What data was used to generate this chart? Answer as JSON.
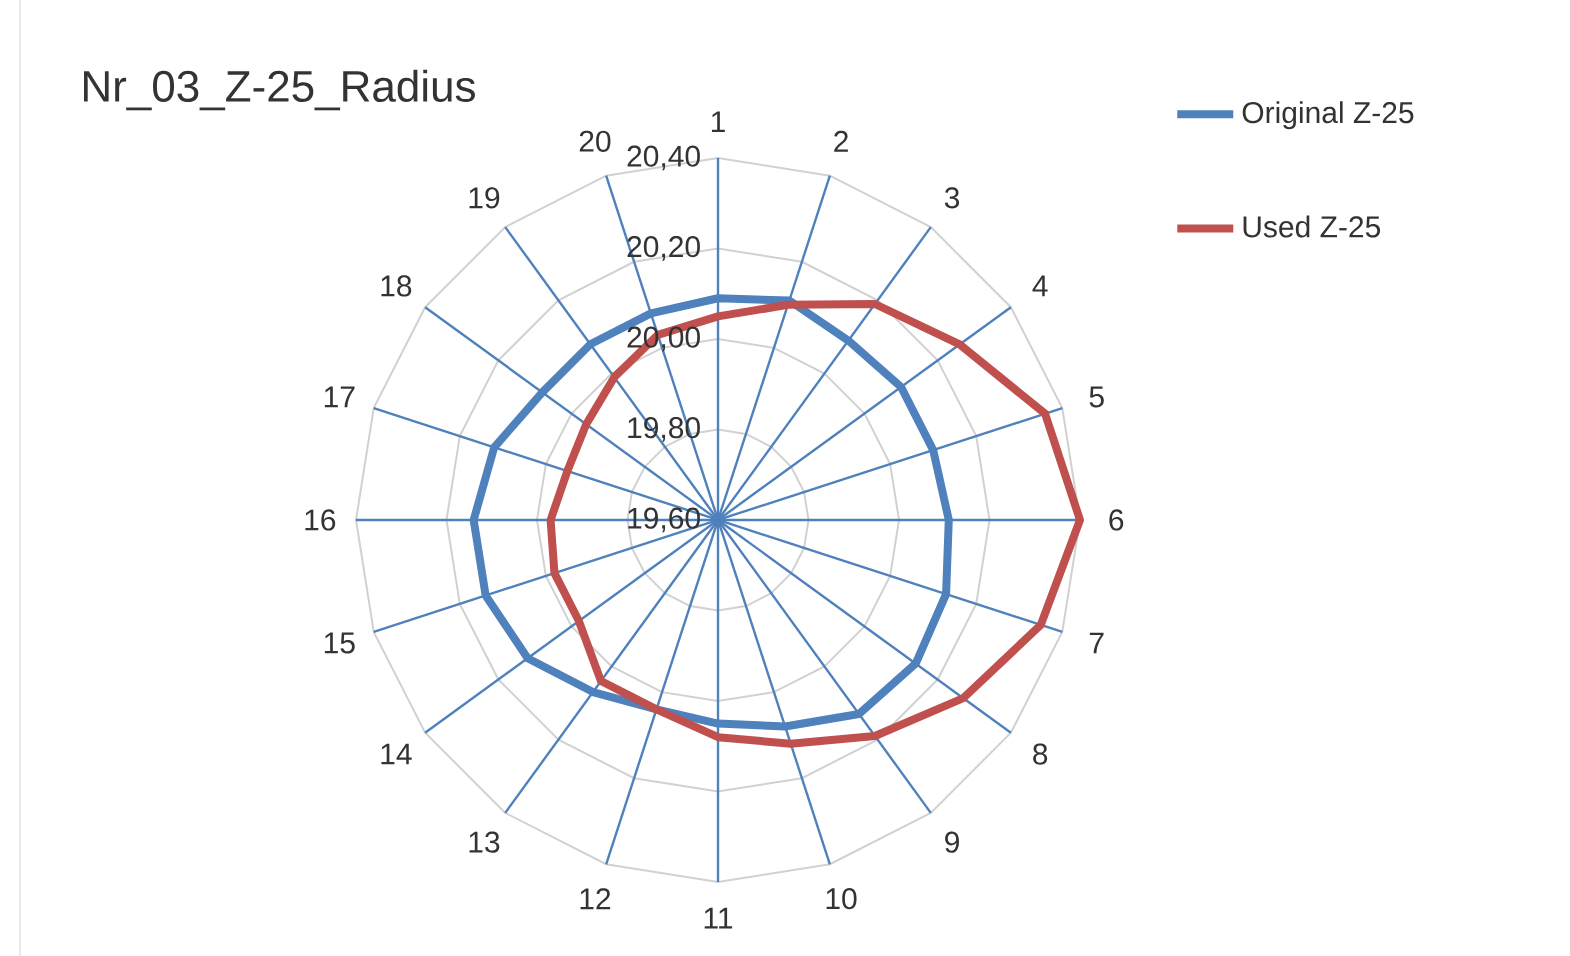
{
  "chart_data": {
    "type": "radar",
    "title": "Nr_03_Z-25_Radius",
    "categories": [
      "1",
      "2",
      "3",
      "4",
      "5",
      "6",
      "7",
      "8",
      "9",
      "10",
      "11",
      "12",
      "13",
      "14",
      "15",
      "16",
      "17",
      "18",
      "19",
      "20"
    ],
    "ylim": [
      19.6,
      20.4
    ],
    "yticks": [
      {
        "value": 19.6,
        "label": "19,60"
      },
      {
        "value": 19.8,
        "label": "19,80"
      },
      {
        "value": 20.0,
        "label": "20,00"
      },
      {
        "value": 20.2,
        "label": "20,20"
      },
      {
        "value": 20.4,
        "label": "20,40"
      }
    ],
    "grid": true,
    "legend": "top right",
    "series": [
      {
        "name": "Original Z-25",
        "color": "#4f81bd",
        "values": [
          20.09,
          20.11,
          20.09,
          20.1,
          20.1,
          20.11,
          20.13,
          20.14,
          20.13,
          20.08,
          20.05,
          20.04,
          20.07,
          20.12,
          20.14,
          20.14,
          20.12,
          20.08,
          20.08,
          20.08
        ]
      },
      {
        "name": "Used Z-25",
        "color": "#c0504d",
        "values": [
          20.05,
          20.1,
          20.19,
          20.26,
          20.36,
          20.4,
          20.35,
          20.27,
          20.19,
          20.12,
          20.08,
          20.04,
          20.04,
          19.98,
          19.98,
          19.97,
          19.95,
          19.96,
          19.99,
          20.03
        ]
      }
    ]
  }
}
